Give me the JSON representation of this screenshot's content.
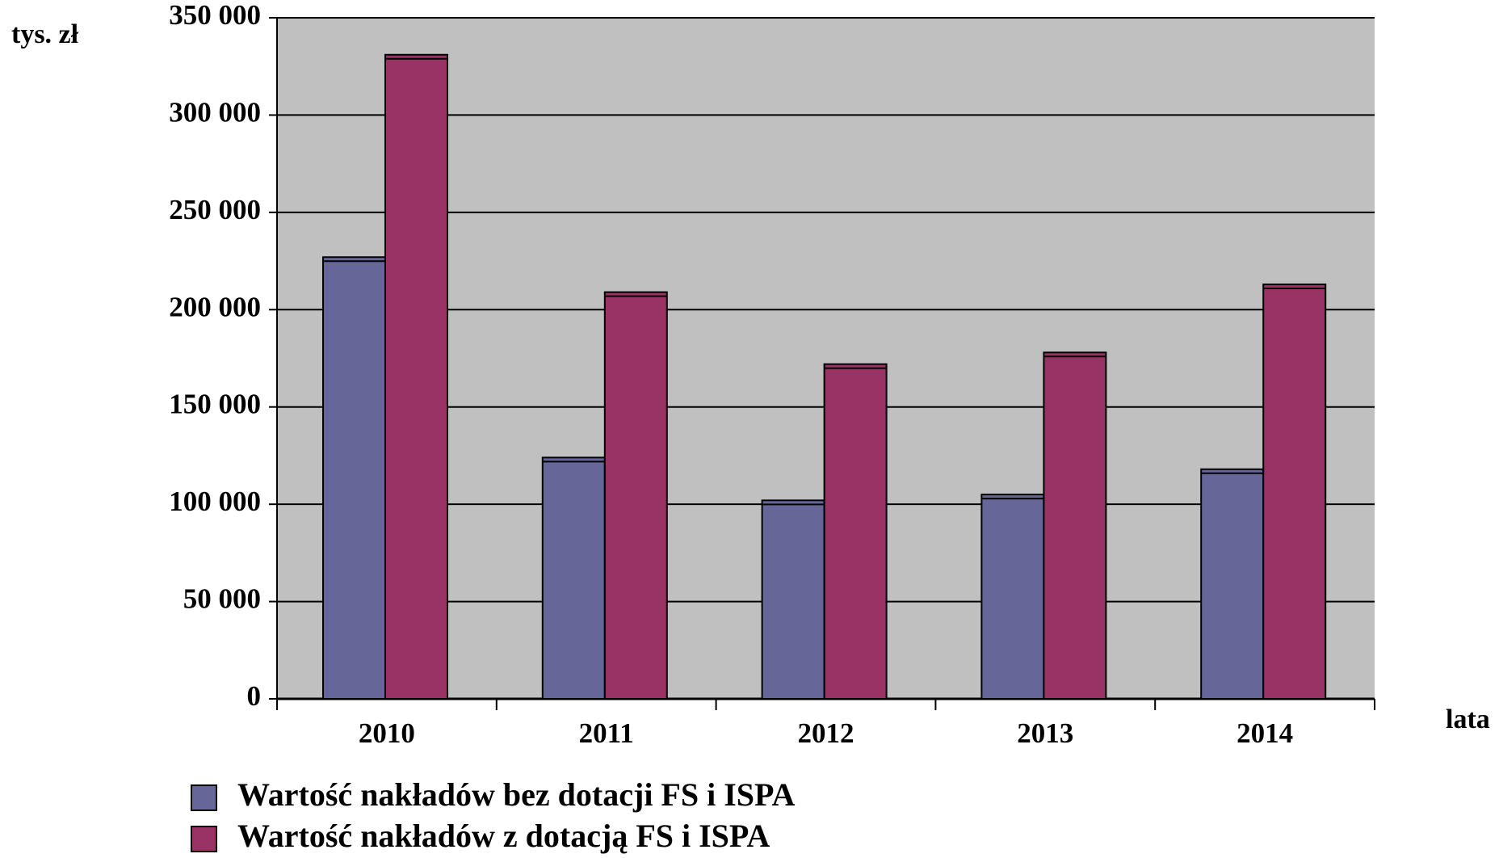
{
  "chart_data": {
    "type": "bar",
    "y_label": "tys. zł",
    "x_label": "lata",
    "categories": [
      "2010",
      "2011",
      "2012",
      "2013",
      "2014"
    ],
    "series": [
      {
        "name": "Wartość nakładów bez dotacji FS i ISPA",
        "color": "#666699",
        "values": [
          227000,
          124000,
          102000,
          105000,
          118000
        ]
      },
      {
        "name": "Wartość nakładów z dotacją FS i ISPA",
        "color": "#993366",
        "values": [
          331000,
          209000,
          172000,
          178000,
          213000
        ]
      }
    ],
    "ylim": [
      0,
      350000
    ],
    "yticks": [
      0,
      {
        "value": 50000,
        "label": "50 000"
      },
      {
        "value": 100000,
        "label": "100 000"
      },
      {
        "value": 150000,
        "label": "150 000"
      },
      {
        "value": 200000,
        "label": "200 000"
      },
      {
        "value": 250000,
        "label": "250 000"
      },
      {
        "value": 300000,
        "label": "300 000"
      },
      {
        "value": 350000,
        "label": "350 000"
      }
    ],
    "grid": true
  }
}
